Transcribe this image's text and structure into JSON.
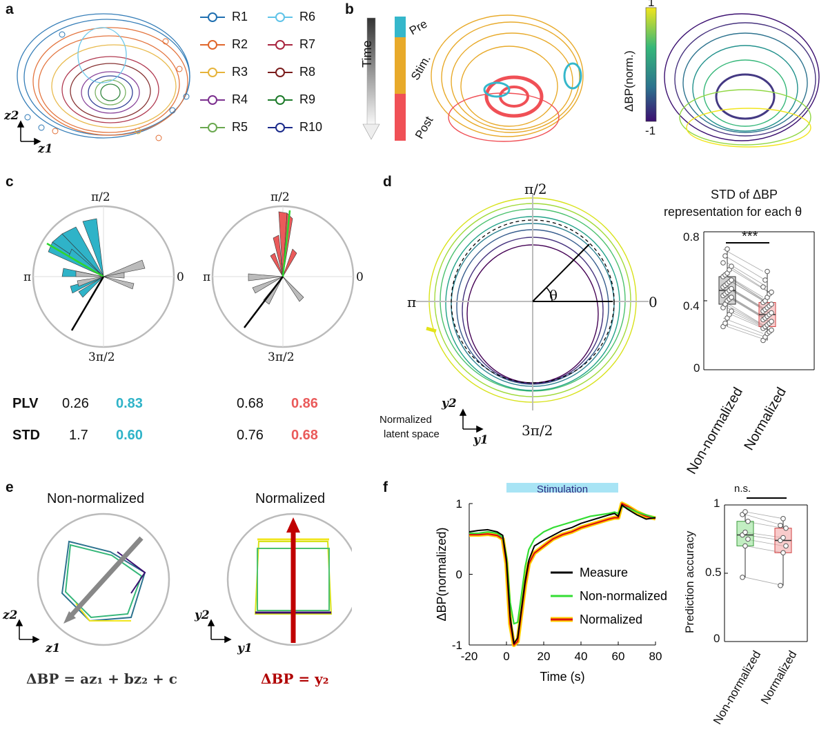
{
  "panels": {
    "a": "a",
    "b": "b",
    "c": "c",
    "d": "d",
    "e": "e",
    "f": "f"
  },
  "panel_a": {
    "axis_x": "z1",
    "axis_y": "z2",
    "legend": [
      {
        "label": "R1",
        "color": "#1f6fb0"
      },
      {
        "label": "R2",
        "color": "#e0662a"
      },
      {
        "label": "R3",
        "color": "#e6b33a"
      },
      {
        "label": "R4",
        "color": "#7b2f8e"
      },
      {
        "label": "R5",
        "color": "#6aa84f"
      },
      {
        "label": "R6",
        "color": "#5fc3e8"
      },
      {
        "label": "R7",
        "color": "#a8243e"
      },
      {
        "label": "R8",
        "color": "#7a1c1c"
      },
      {
        "label": "R9",
        "color": "#1d7a2a"
      },
      {
        "label": "R10",
        "color": "#1a2a8a"
      }
    ]
  },
  "panel_b": {
    "time_label": "Time",
    "phases": [
      {
        "label": "Pre",
        "color": "#35b7cb"
      },
      {
        "label": "Stim.",
        "color": "#e8aa2a"
      },
      {
        "label": "Post",
        "color": "#f05056"
      }
    ],
    "colorbar_label": "ΔBP(norm.)",
    "colorbar_max": "1",
    "colorbar_min": "-1"
  },
  "panel_c": {
    "angle_top": "π/2",
    "angle_left": "π",
    "angle_right": "0",
    "angle_bottom": "3π/2",
    "rows": [
      {
        "name": "PLV",
        "left_a": "0.26",
        "left_b": "0.83",
        "right_a": "0.68",
        "right_b": "0.86"
      },
      {
        "name": "STD",
        "left_a": "1.7",
        "left_b": "0.60",
        "right_a": "0.76",
        "right_b": "0.68"
      }
    ],
    "colors": {
      "left_accent": "#2fb3c8",
      "right_accent": "#ea5a5a"
    }
  },
  "panel_d": {
    "angle_top": "π/2",
    "angle_left": "π",
    "angle_right": "0",
    "angle_bottom": "3π/2",
    "theta": "θ",
    "axis_x": "y1",
    "axis_y": "y2",
    "space_label_1": "Normalized",
    "space_label_2": "latent space",
    "box_title_1": "STD of ΔBP",
    "box_title_2": "representation for each θ",
    "significance": "***",
    "categories": [
      "Non-normalized",
      "Normalized"
    ],
    "yticks": [
      "0",
      "0.4",
      "0.8"
    ]
  },
  "panel_e": {
    "title_left": "Non-normalized",
    "title_right": "Normalized",
    "axis_left_x": "z1",
    "axis_left_y": "z2",
    "axis_right_x": "y1",
    "axis_right_y": "y2",
    "eq_left": "ΔBP = az₁ + bz₂ + c",
    "eq_right": "ΔBP = y₂"
  },
  "chart_data": [
    {
      "type": "line",
      "title": "",
      "annotation": "Stimulation",
      "xlabel": "Time (s)",
      "ylabel": "ΔBP(normalized)",
      "xlim": [
        -20,
        80
      ],
      "ylim": [
        -1,
        1
      ],
      "xticks": [
        "-20",
        "0",
        "20",
        "40",
        "60",
        "80"
      ],
      "yticks": [
        "-1",
        "0",
        "1"
      ],
      "stim_range": [
        0,
        60
      ],
      "x": [
        -20,
        -15,
        -10,
        -5,
        -2,
        0,
        2,
        4,
        6,
        8,
        10,
        12,
        15,
        18,
        20,
        25,
        30,
        35,
        40,
        45,
        50,
        55,
        58,
        60,
        62,
        65,
        70,
        75,
        80
      ],
      "series": [
        {
          "name": "Measure",
          "color": "#000000",
          "values": [
            0.6,
            0.62,
            0.63,
            0.6,
            0.55,
            0.2,
            -0.6,
            -0.98,
            -0.9,
            -0.5,
            -0.1,
            0.2,
            0.4,
            0.45,
            0.48,
            0.55,
            0.62,
            0.66,
            0.72,
            0.76,
            0.8,
            0.84,
            0.86,
            0.82,
            0.98,
            0.92,
            0.84,
            0.78,
            0.8
          ]
        },
        {
          "name": "Non-normalized",
          "color": "#33dd33",
          "values": [
            0.58,
            0.58,
            0.6,
            0.58,
            0.52,
            0.25,
            -0.4,
            -0.7,
            -0.68,
            -0.3,
            0.1,
            0.35,
            0.5,
            0.56,
            0.6,
            0.66,
            0.7,
            0.74,
            0.78,
            0.82,
            0.84,
            0.86,
            0.88,
            0.86,
            0.96,
            0.94,
            0.88,
            0.84,
            0.8
          ]
        },
        {
          "name": "Normalized",
          "color": "#dd1111",
          "values": [
            0.56,
            0.56,
            0.57,
            0.55,
            0.5,
            0.15,
            -0.7,
            -1.0,
            -0.95,
            -0.55,
            -0.15,
            0.15,
            0.3,
            0.36,
            0.4,
            0.5,
            0.56,
            0.6,
            0.66,
            0.7,
            0.74,
            0.78,
            0.8,
            0.8,
            1.0,
            0.96,
            0.88,
            0.82,
            0.79
          ]
        }
      ]
    },
    {
      "type": "box",
      "title": "",
      "ylabel": "Prediction accuracy",
      "categories": [
        "Non-normalized",
        "Normalized"
      ],
      "significance": "n.s.",
      "yticks": [
        "0",
        "0.5",
        "1"
      ],
      "ylim": [
        0,
        1
      ],
      "paired_values": [
        [
          0.95,
          0.9
        ],
        [
          0.93,
          0.85
        ],
        [
          0.88,
          0.83
        ],
        [
          0.8,
          0.76
        ],
        [
          0.78,
          0.74
        ],
        [
          0.75,
          0.7
        ],
        [
          0.7,
          0.65
        ],
        [
          0.47,
          0.41
        ]
      ],
      "colors": [
        "#8fe08f",
        "#f2a0a0"
      ]
    },
    {
      "type": "box",
      "title": "",
      "ylabel": "",
      "categories": [
        "Non-normalized",
        "Normalized"
      ],
      "ylim": [
        0,
        0.8
      ],
      "paired_values": [
        [
          0.7,
          0.57
        ],
        [
          0.66,
          0.52
        ],
        [
          0.62,
          0.48
        ],
        [
          0.6,
          0.45
        ],
        [
          0.58,
          0.44
        ],
        [
          0.56,
          0.42
        ],
        [
          0.55,
          0.4
        ],
        [
          0.54,
          0.39
        ],
        [
          0.52,
          0.38
        ],
        [
          0.51,
          0.37
        ],
        [
          0.5,
          0.36
        ],
        [
          0.49,
          0.35
        ],
        [
          0.48,
          0.34
        ],
        [
          0.47,
          0.33
        ],
        [
          0.46,
          0.32
        ],
        [
          0.45,
          0.31
        ],
        [
          0.44,
          0.3
        ],
        [
          0.43,
          0.29
        ],
        [
          0.42,
          0.28
        ],
        [
          0.41,
          0.27
        ],
        [
          0.4,
          0.26
        ],
        [
          0.38,
          0.25
        ],
        [
          0.36,
          0.24
        ],
        [
          0.34,
          0.23
        ],
        [
          0.32,
          0.22
        ],
        [
          0.3,
          0.21
        ],
        [
          0.27,
          0.19
        ],
        [
          0.25,
          0.17
        ]
      ],
      "colors": [
        "#7a7a7a",
        "#f2a0a0"
      ]
    }
  ]
}
